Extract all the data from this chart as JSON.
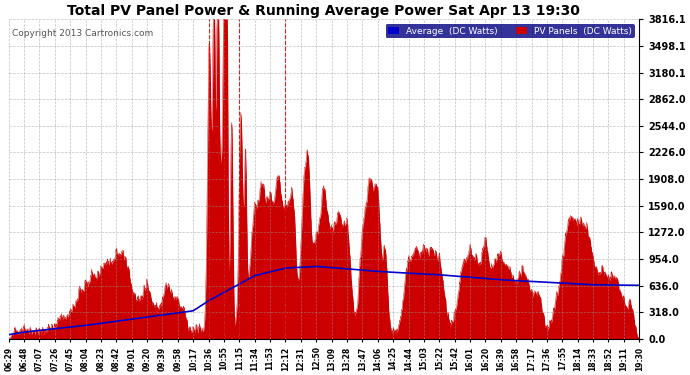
{
  "title": "Total PV Panel Power & Running Average Power Sat Apr 13 19:30",
  "copyright": "Copyright 2013 Cartronics.com",
  "ylabel_right_ticks": [
    0.0,
    318.0,
    636.0,
    954.0,
    1272.0,
    1590.0,
    1908.0,
    2226.0,
    2544.0,
    2862.0,
    3180.1,
    3498.1,
    3816.1
  ],
  "ymax": 3816.1,
  "ymin": 0.0,
  "background_color": "#ffffff",
  "grid_color": "#999999",
  "pv_color": "#cc0000",
  "avg_color": "#0000cc",
  "title_color": "#000000",
  "legend_avg_bg": "#0000cc",
  "legend_pv_bg": "#cc0000",
  "x_labels": [
    "06:29",
    "06:48",
    "07:07",
    "07:26",
    "07:45",
    "08:04",
    "08:23",
    "08:42",
    "09:01",
    "09:20",
    "09:39",
    "09:58",
    "10:17",
    "10:36",
    "10:55",
    "11:15",
    "11:34",
    "11:53",
    "12:12",
    "12:31",
    "12:50",
    "13:09",
    "13:28",
    "13:47",
    "14:06",
    "14:25",
    "14:44",
    "15:03",
    "15:22",
    "15:42",
    "16:01",
    "16:20",
    "16:39",
    "16:58",
    "17:17",
    "17:36",
    "17:55",
    "18:14",
    "18:33",
    "18:52",
    "19:11",
    "19:30"
  ],
  "vlines": [
    13,
    14,
    15,
    18
  ],
  "num_points": 2000,
  "figsize": [
    6.9,
    3.75
  ],
  "dpi": 100
}
